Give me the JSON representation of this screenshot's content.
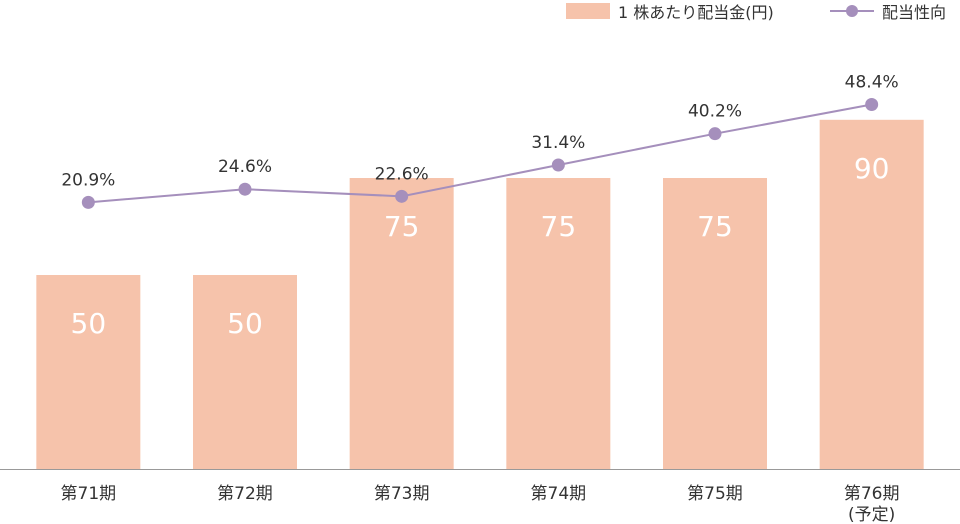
{
  "chart_data": {
    "type": "bar",
    "categories": [
      "第71期",
      "第72期",
      "第73期",
      "第74期",
      "第75期",
      "第76期\n(予定)"
    ],
    "series": [
      {
        "name": "1 株あたり配当金(円)",
        "type": "bar",
        "values": [
          50,
          50,
          75,
          75,
          75,
          90
        ],
        "data_labels": [
          "50",
          "50",
          "75",
          "75",
          "75",
          "90"
        ]
      },
      {
        "name": "配当性向",
        "type": "line",
        "values": [
          20.9,
          24.6,
          22.6,
          31.4,
          40.2,
          48.4
        ],
        "data_labels": [
          "20.9%",
          "24.6%",
          "22.6%",
          "31.4%",
          "40.2%",
          "48.4%"
        ]
      }
    ],
    "title": "",
    "xlabel": "",
    "ylabel": "",
    "ylim": [
      0,
      100
    ],
    "y2lim": [
      -54,
      55
    ],
    "grid": false,
    "legend_position": "top-right",
    "colors": {
      "bar": "#f6c3ab",
      "bar_label": "#ffffff",
      "line": "#a58fbc",
      "text": "#333333",
      "axis": "#999999"
    }
  }
}
